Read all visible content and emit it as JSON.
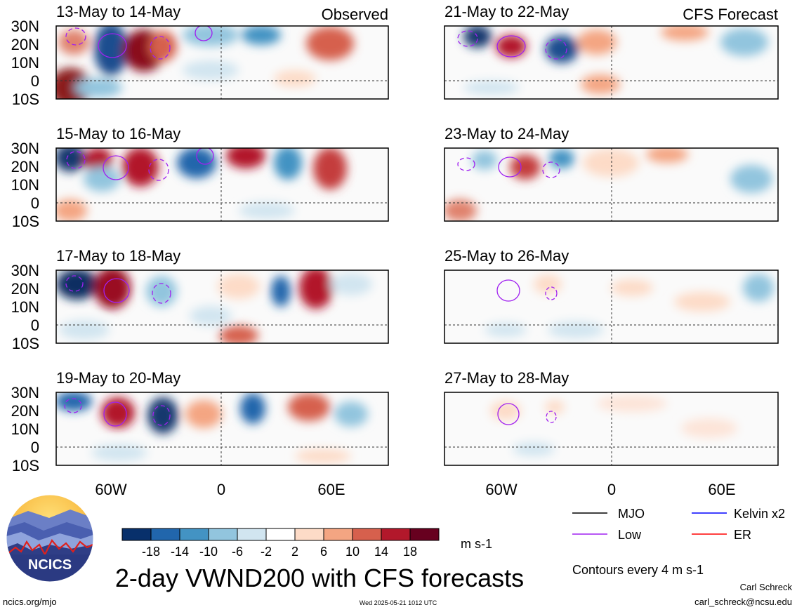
{
  "title": "2-day VWND200 with CFS forecasts",
  "observed_label": "Observed",
  "forecast_label": "CFS Forecast",
  "panels_left": [
    "13-May to 14-May",
    "15-May to 16-May",
    "17-May to 18-May",
    "19-May to 20-May"
  ],
  "panels_right": [
    "21-May to 22-May",
    "23-May to 24-May",
    "25-May to 26-May",
    "27-May to 28-May"
  ],
  "lat_ticks": [
    "30N",
    "20N",
    "10N",
    "0",
    "10S"
  ],
  "lon_ticks": [
    "60W",
    "0",
    "60E"
  ],
  "colorbar": {
    "labels": [
      "-18",
      "-14",
      "-10",
      "-6",
      "-2",
      "2",
      "6",
      "10",
      "14",
      "18"
    ],
    "colors": [
      "#08306b",
      "#2166ac",
      "#4393c3",
      "#92c5de",
      "#d1e5f0",
      "#ffffff",
      "#fddbc7",
      "#f4a582",
      "#d6604d",
      "#b2182b",
      "#67001f"
    ],
    "units": "m s-1"
  },
  "legend": [
    {
      "label": "MJO",
      "color": "#000000"
    },
    {
      "label": "Kelvin x2",
      "color": "#0000ff"
    },
    {
      "label": "Low",
      "color": "#a020f0"
    },
    {
      "label": "ER",
      "color": "#ff0000"
    }
  ],
  "contour_note": "Contours every 4 m s-1",
  "credit_name": "Carl Schreck",
  "credit_email": "carl_schreck@ncsu.edu",
  "site": "ncics.org/mjo",
  "timestamp": "Wed 2025-05-21 1012 UTC",
  "logo_text": "NCICS",
  "chart_data": {
    "type": "heatmap",
    "variable": "VWND200",
    "units": "m s-1",
    "lat_range": [
      "10S",
      "30N"
    ],
    "lon_ticks": [
      "60W",
      "0",
      "60E"
    ],
    "contour_interval": 4,
    "color_levels": [
      -18,
      -14,
      -10,
      -6,
      -2,
      2,
      6,
      10,
      14,
      18
    ]
  }
}
